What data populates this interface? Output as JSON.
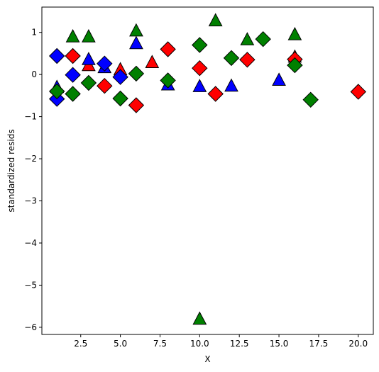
{
  "chart_data": {
    "type": "scatter",
    "title": "",
    "xlabel": "X",
    "ylabel": "standardized resids",
    "xlim": [
      0.05,
      20.95
    ],
    "ylim": [
      -6.17,
      1.6
    ],
    "xticks": [
      2.5,
      5.0,
      7.5,
      10.0,
      12.5,
      15.0,
      17.5,
      20.0
    ],
    "xtick_labels": [
      "2.5",
      "5.0",
      "7.5",
      "10.0",
      "12.5",
      "15.0",
      "17.5",
      "20.0"
    ],
    "yticks": [
      1,
      0,
      -1,
      -2,
      -3,
      -4,
      -5,
      -6
    ],
    "ytick_labels": [
      "1",
      "0",
      "−1",
      "−2",
      "−3",
      "−4",
      "−5",
      "−6"
    ],
    "grid": false,
    "legend": false,
    "edge_color": "#000000",
    "series": [
      {
        "color": "#ff0000",
        "marker": "triangle",
        "points": [
          [
            3,
            0.22
          ],
          [
            5,
            0.12
          ],
          [
            7,
            0.29
          ],
          [
            16,
            0.42
          ]
        ]
      },
      {
        "color": "#ff0000",
        "marker": "diamond",
        "points": [
          [
            2,
            0.44
          ],
          [
            4,
            -0.27
          ],
          [
            6,
            -0.73
          ],
          [
            8,
            0.6
          ],
          [
            10,
            0.15
          ],
          [
            11,
            -0.46
          ],
          [
            13,
            0.35
          ],
          [
            16,
            0.36
          ],
          [
            20,
            -0.41
          ]
        ]
      },
      {
        "color": "#0000ff",
        "marker": "triangle",
        "points": [
          [
            1,
            -0.3
          ],
          [
            3,
            0.36
          ],
          [
            4,
            0.17
          ],
          [
            6,
            0.74
          ],
          [
            8,
            -0.24
          ],
          [
            10,
            -0.28
          ],
          [
            12,
            -0.27
          ],
          [
            15,
            -0.13
          ]
        ]
      },
      {
        "color": "#0000ff",
        "marker": "diamond",
        "points": [
          [
            1,
            0.44
          ],
          [
            1,
            -0.58
          ],
          [
            2,
            -0.01
          ],
          [
            4,
            0.26
          ],
          [
            5,
            -0.06
          ]
        ]
      },
      {
        "color": "#008000",
        "marker": "triangle",
        "points": [
          [
            2,
            0.9
          ],
          [
            3,
            0.9
          ],
          [
            6,
            1.04
          ],
          [
            10,
            -5.8
          ],
          [
            11,
            1.28
          ],
          [
            13,
            0.83
          ],
          [
            16,
            0.95
          ]
        ]
      },
      {
        "color": "#008000",
        "marker": "diamond",
        "points": [
          [
            1,
            -0.4
          ],
          [
            2,
            -0.46
          ],
          [
            3,
            -0.2
          ],
          [
            5,
            -0.57
          ],
          [
            6,
            0.02
          ],
          [
            8,
            -0.14
          ],
          [
            10,
            0.7
          ],
          [
            12,
            0.39
          ],
          [
            14,
            0.84
          ],
          [
            16,
            0.22
          ],
          [
            17,
            -0.6
          ]
        ]
      }
    ]
  }
}
